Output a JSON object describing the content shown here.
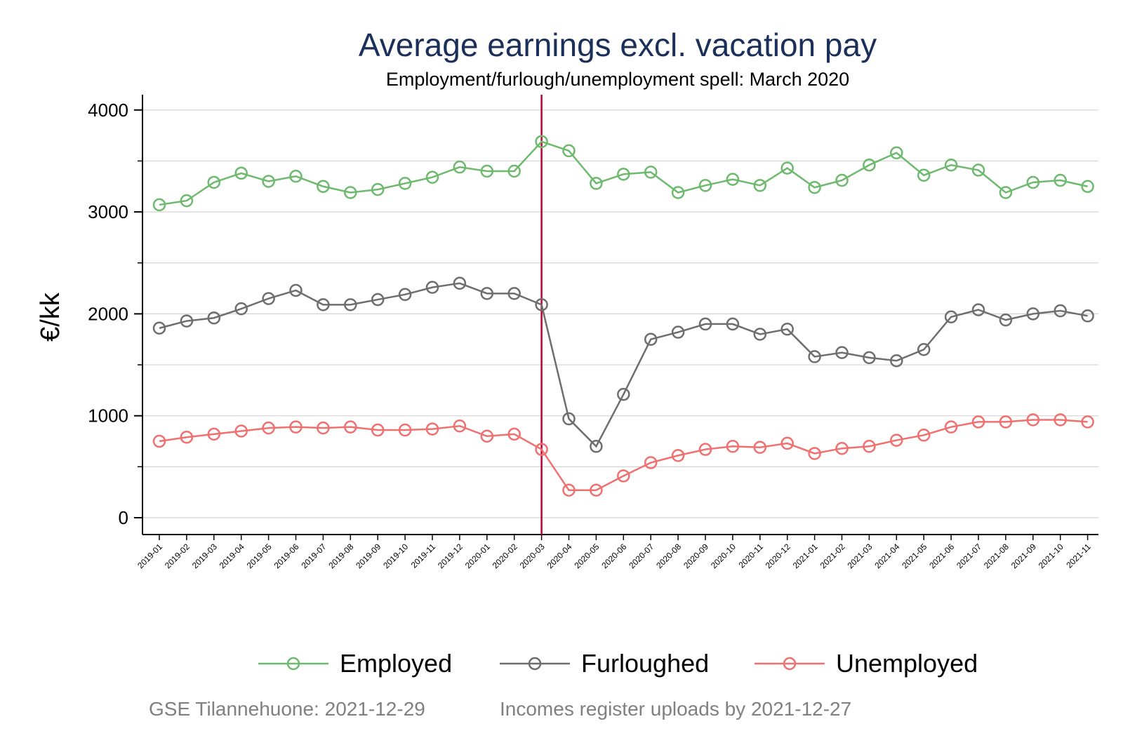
{
  "chart_data": {
    "type": "line",
    "title": "Average earnings excl. vacation pay",
    "subtitle": "Employment/furlough/unemployment spell: March 2020",
    "xlabel": "",
    "ylabel": "€/kk",
    "ylim": [
      -150,
      4150
    ],
    "yticks_major": [
      0,
      1000,
      2000,
      3000,
      4000
    ],
    "yticks_minor": [
      500,
      1500,
      2500,
      3500
    ],
    "grid": "horizontal",
    "legend_position": "bottom",
    "reference_line": {
      "x": "2020-03",
      "color": "#c00033"
    },
    "x": [
      "2019-01",
      "2019-02",
      "2019-03",
      "2019-04",
      "2019-05",
      "2019-06",
      "2019-07",
      "2019-08",
      "2019-09",
      "2019-10",
      "2019-11",
      "2019-12",
      "2020-01",
      "2020-02",
      "2020-03",
      "2020-04",
      "2020-05",
      "2020-06",
      "2020-07",
      "2020-08",
      "2020-09",
      "2020-10",
      "2020-11",
      "2020-12",
      "2021-01",
      "2021-02",
      "2021-03",
      "2021-04",
      "2021-05",
      "2021-06",
      "2021-07",
      "2021-08",
      "2021-09",
      "2021-10",
      "2021-11"
    ],
    "series": [
      {
        "name": "Employed",
        "color": "#6db96d",
        "values": [
          3070,
          3110,
          3290,
          3380,
          3300,
          3350,
          3250,
          3190,
          3220,
          3280,
          3340,
          3440,
          3400,
          3400,
          3690,
          3600,
          3280,
          3370,
          3390,
          3190,
          3260,
          3320,
          3260,
          3430,
          3240,
          3310,
          3460,
          3580,
          3360,
          3460,
          3410,
          3190,
          3290,
          3310,
          3250
        ]
      },
      {
        "name": "Furloughed",
        "color": "#6e6e6e",
        "values": [
          1860,
          1930,
          1960,
          2050,
          2150,
          2230,
          2090,
          2090,
          2140,
          2190,
          2260,
          2300,
          2200,
          2200,
          2090,
          970,
          700,
          1210,
          1750,
          1820,
          1900,
          1900,
          1800,
          1850,
          1580,
          1620,
          1570,
          1540,
          1650,
          1970,
          2040,
          1940,
          2000,
          2030,
          1980
        ]
      },
      {
        "name": "Unemployed",
        "color": "#f07070",
        "values": [
          750,
          790,
          820,
          850,
          880,
          890,
          880,
          890,
          860,
          860,
          870,
          900,
          800,
          820,
          670,
          270,
          270,
          410,
          540,
          610,
          670,
          700,
          690,
          730,
          630,
          680,
          700,
          760,
          810,
          890,
          940,
          940,
          960,
          960,
          940
        ]
      }
    ],
    "notes": [
      "GSE Tilannehuone: 2021-12-29",
      "Incomes register uploads by 2021-12-27"
    ]
  }
}
